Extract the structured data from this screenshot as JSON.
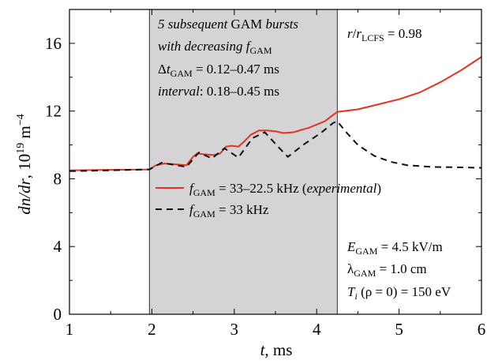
{
  "chart_data": {
    "type": "line",
    "xlabel": "t, ms",
    "ylabel": "dn/dr, 10^19 m^-4",
    "xlim": [
      1,
      6
    ],
    "ylim": [
      0,
      18
    ],
    "xticks": [
      1,
      2,
      3,
      4,
      5,
      6
    ],
    "yticks": [
      0,
      4,
      8,
      12,
      16
    ],
    "shaded_region": {
      "x": [
        1.97,
        4.25
      ],
      "color": "#d4d4d7"
    },
    "series": [
      {
        "name": "fGAM = 33–22.5 kHz (experimental)",
        "color": "#e8321e",
        "style": "solid",
        "x": [
          1.0,
          1.97,
          2.05,
          2.15,
          2.3,
          2.42,
          2.5,
          2.55,
          2.63,
          2.75,
          2.83,
          2.9,
          2.97,
          3.05,
          3.12,
          3.2,
          3.3,
          3.4,
          3.5,
          3.6,
          3.72,
          3.82,
          3.9,
          4.0,
          4.1,
          4.18,
          4.25,
          4.5,
          4.75,
          5.0,
          5.25,
          5.5,
          5.75,
          6.0
        ],
        "y": [
          8.5,
          8.55,
          8.8,
          8.9,
          8.85,
          8.8,
          9.3,
          9.5,
          9.45,
          9.4,
          9.5,
          9.9,
          9.95,
          9.9,
          10.2,
          10.6,
          10.85,
          10.85,
          10.8,
          10.7,
          10.75,
          10.9,
          11.0,
          11.2,
          11.4,
          11.7,
          11.95,
          12.1,
          12.4,
          12.7,
          13.1,
          13.7,
          14.4,
          15.2
        ]
      },
      {
        "name": "fGAM = 33 kHz",
        "color": "#111111",
        "style": "dashed",
        "x": [
          1.0,
          1.97,
          2.12,
          2.42,
          2.57,
          2.73,
          2.88,
          3.05,
          3.22,
          3.37,
          3.55,
          3.65,
          3.85,
          4.05,
          4.2,
          4.25,
          4.35,
          4.5,
          4.7,
          4.9,
          5.1,
          5.4,
          5.7,
          6.0
        ],
        "y": [
          8.45,
          8.55,
          8.95,
          8.7,
          9.55,
          9.2,
          9.8,
          9.25,
          10.4,
          10.75,
          9.8,
          9.3,
          10.05,
          10.7,
          11.3,
          11.4,
          10.8,
          10.0,
          9.35,
          9.0,
          8.8,
          8.7,
          8.68,
          8.65
        ]
      }
    ]
  },
  "annotations": {
    "burst_line1_it": "5 subsequent",
    "burst_line1_rest": " GAM ",
    "burst_line1_end": "bursts",
    "burst_line2_it": "with decreasing ",
    "burst_line2_f": "f",
    "burst_line2_sub": "GAM",
    "dt_delta": "Δ",
    "dt_t": "t",
    "dt_sub": "GAM",
    "dt_val": " = 0.12–0.47 ms",
    "interval_it": "interval",
    "interval_val": ": 0.18–0.45 ms",
    "radius_r1": "r",
    "radius_slash": "/",
    "radius_r2": "r",
    "radius_sub": "LCFS",
    "radius_val": " = 0.98",
    "egam_e": "E",
    "egam_sub": "GAM",
    "egam_val": " = 4.5 kV/m",
    "lambda_sym": "λ",
    "lambda_sub": "GAM",
    "lambda_val": " = 1.0 cm",
    "ti_t": "T",
    "ti_sub": "i",
    "ti_val": " (ρ = 0) = 150 eV"
  },
  "legend": {
    "exp_f": "f",
    "exp_sub": "GAM",
    "exp_val": " = 33–22.5 kHz (",
    "exp_it": "experimental",
    "exp_close": ")",
    "sim_f": "f",
    "sim_sub": "GAM",
    "sim_val": " = 33 kHz"
  },
  "axis_text": {
    "x_t": "t",
    "x_unit": ", ms",
    "y_main": "dn/dr",
    "y_unit": ", 10",
    "y_exp1": "19",
    "y_m": " m",
    "y_exp2": "−4"
  }
}
